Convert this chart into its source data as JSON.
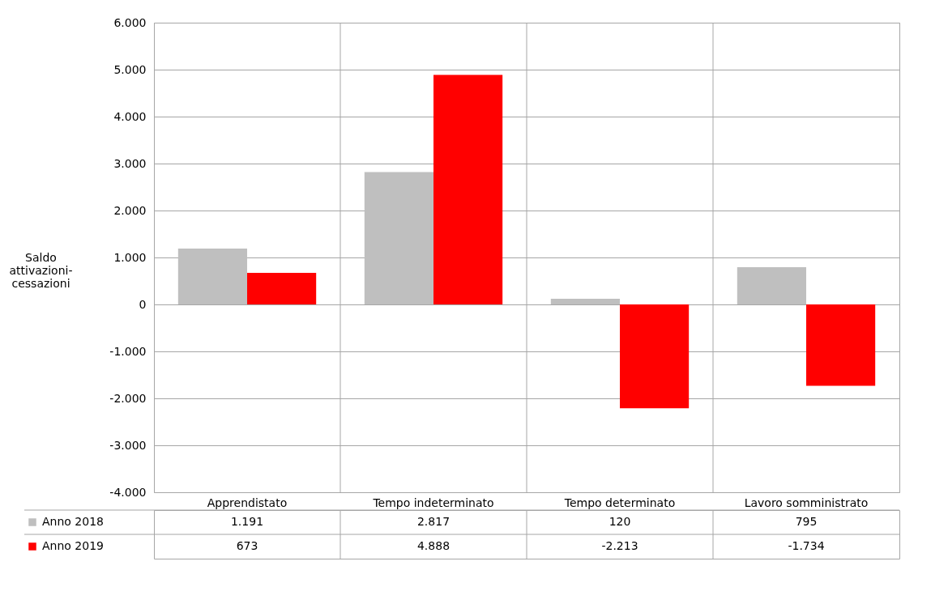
{
  "chart_data": {
    "type": "bar",
    "ylabel": "Saldo attivazioni-cessazioni",
    "categories": [
      "Apprendistato",
      "Tempo indeterminato",
      "Tempo determinato",
      "Lavoro somministrato"
    ],
    "series": [
      {
        "name": "Anno 2018",
        "color": "#bfbfbf",
        "values": [
          1191,
          2817,
          120,
          795
        ],
        "value_labels": [
          "1.191",
          "2.817",
          "120",
          "795"
        ]
      },
      {
        "name": "Anno 2019",
        "color": "#ff0000",
        "values": [
          673,
          4888,
          -2213,
          -1734
        ],
        "value_labels": [
          "673",
          "4.888",
          "-2.213",
          "-1.734"
        ]
      }
    ],
    "ylim": [
      -4000,
      6000
    ],
    "yticks": [
      {
        "value": -4000,
        "label": "-4.000"
      },
      {
        "value": -3000,
        "label": "-3.000"
      },
      {
        "value": -2000,
        "label": "-2.000"
      },
      {
        "value": -1000,
        "label": "-1.000"
      },
      0,
      {
        "value": 1000,
        "label": "1.000"
      },
      {
        "value": 2000,
        "label": "2.000"
      },
      {
        "value": 3000,
        "label": "3.000"
      },
      {
        "value": 4000,
        "label": "4.000"
      },
      {
        "value": 5000,
        "label": "5.000"
      },
      {
        "value": 6000,
        "label": "6.000"
      }
    ],
    "grid": true,
    "legend": "bottom"
  }
}
